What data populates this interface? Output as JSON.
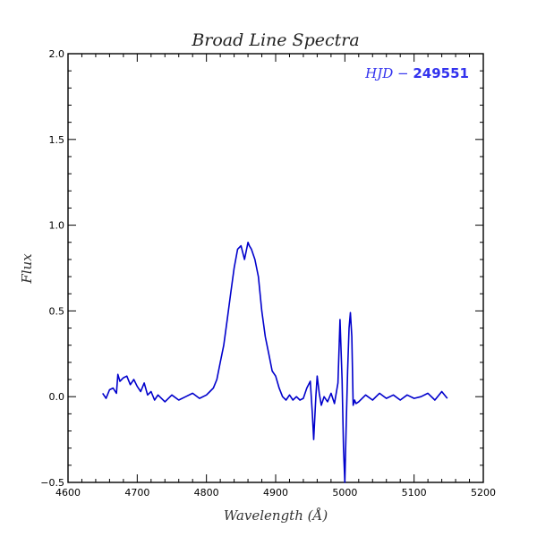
{
  "chart_data": {
    "type": "line",
    "title": "Broad Line Spectra",
    "xlabel": "Wavelength (Å)",
    "ylabel": "Flux",
    "xlim": [
      4600,
      5200
    ],
    "ylim": [
      -0.5,
      2.0
    ],
    "x_ticks": [
      4600,
      4700,
      4800,
      4900,
      5000,
      5100,
      5200
    ],
    "x_tick_labels": [
      "4600",
      "4700",
      "4800",
      "4900",
      "5000",
      "5100",
      "5200"
    ],
    "y_ticks": [
      -0.5,
      0.0,
      0.5,
      1.0,
      1.5,
      2.0
    ],
    "y_tick_labels": [
      "−0.5",
      "0.0",
      "0.5",
      "1.0",
      "1.5",
      "2.0"
    ],
    "grid": false,
    "annotation": {
      "prefix": "HJD − ",
      "value": "249551",
      "position": "top-right",
      "color": "#3333ee"
    },
    "series": [
      {
        "color": "#0000cc",
        "x": [
          4650,
          4655,
          4660,
          4665,
          4670,
          4672,
          4675,
          4680,
          4685,
          4690,
          4695,
          4700,
          4705,
          4710,
          4715,
          4720,
          4725,
          4730,
          4740,
          4750,
          4760,
          4770,
          4780,
          4790,
          4800,
          4805,
          4810,
          4815,
          4820,
          4825,
          4830,
          4835,
          4840,
          4845,
          4850,
          4855,
          4860,
          4862,
          4865,
          4870,
          4875,
          4880,
          4885,
          4890,
          4895,
          4900,
          4905,
          4910,
          4915,
          4920,
          4925,
          4930,
          4935,
          4940,
          4945,
          4950,
          4953,
          4955,
          4958,
          4960,
          4963,
          4966,
          4970,
          4975,
          4980,
          4985,
          4990,
          4993,
          4996,
          4998,
          5000,
          5002,
          5004,
          5006,
          5008,
          5010,
          5012,
          5014,
          5016,
          5020,
          5030,
          5040,
          5050,
          5060,
          5070,
          5080,
          5090,
          5100,
          5110,
          5120,
          5130,
          5140,
          5148
        ],
        "y": [
          0.02,
          -0.01,
          0.04,
          0.05,
          0.02,
          0.13,
          0.09,
          0.11,
          0.12,
          0.07,
          0.1,
          0.06,
          0.03,
          0.08,
          0.01,
          0.03,
          -0.02,
          0.01,
          -0.03,
          0.01,
          -0.02,
          0.0,
          0.02,
          -0.01,
          0.01,
          0.03,
          0.05,
          0.1,
          0.2,
          0.3,
          0.45,
          0.6,
          0.75,
          0.86,
          0.88,
          0.8,
          0.9,
          0.88,
          0.86,
          0.8,
          0.7,
          0.5,
          0.35,
          0.25,
          0.15,
          0.12,
          0.05,
          0.0,
          -0.02,
          0.01,
          -0.02,
          0.0,
          -0.02,
          -0.01,
          0.05,
          0.09,
          -0.1,
          -0.25,
          0.0,
          0.12,
          0.02,
          -0.05,
          0.0,
          -0.03,
          0.02,
          -0.04,
          0.08,
          0.45,
          0.1,
          -0.3,
          -0.5,
          -0.15,
          0.15,
          0.4,
          0.49,
          0.35,
          -0.05,
          -0.02,
          -0.04,
          -0.03,
          0.01,
          -0.02,
          0.02,
          -0.01,
          0.01,
          -0.02,
          0.01,
          -0.01,
          0.0,
          0.02,
          -0.02,
          0.03,
          -0.01
        ]
      }
    ]
  }
}
